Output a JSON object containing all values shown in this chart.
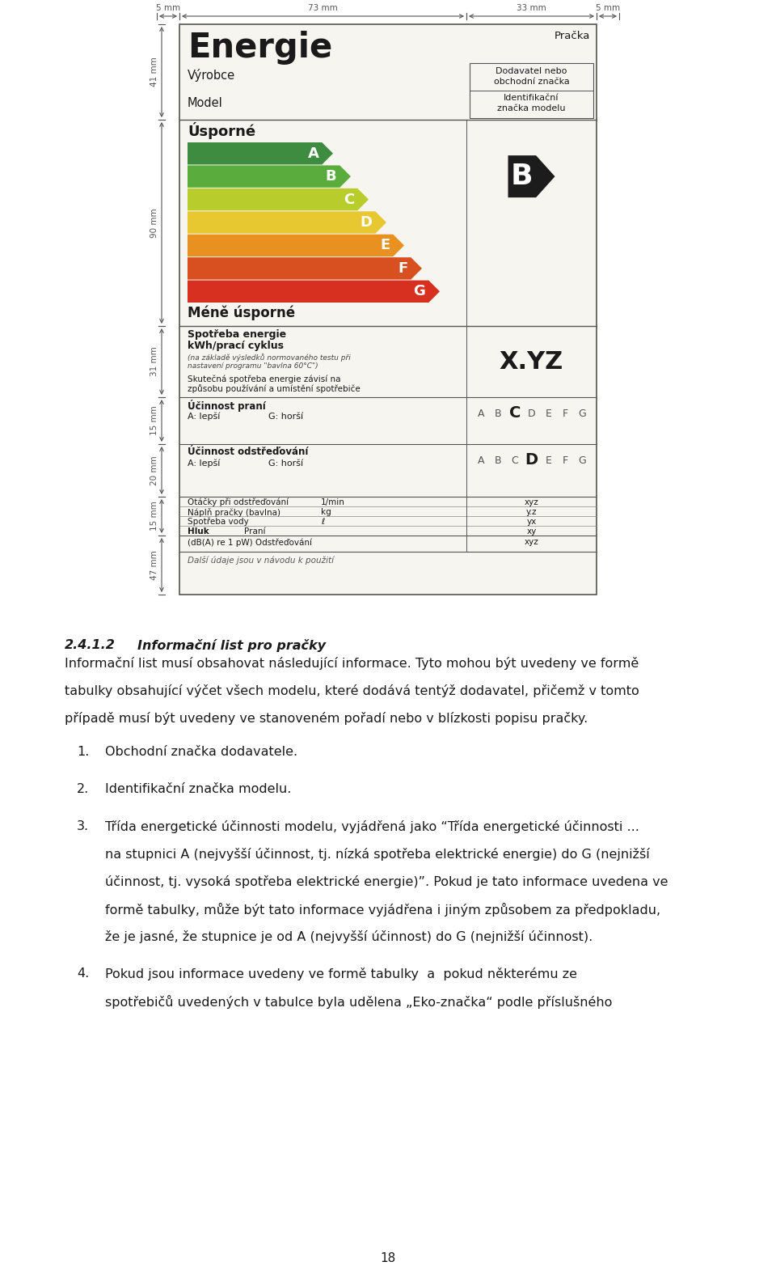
{
  "bg_color": "#ffffff",
  "label_bg": "#f7f5f0",
  "page_title_section": {
    "heading": "2.4.1.2",
    "heading_italic": "Informační list pro pračky",
    "paragraph1": "Informační list musí obsahovat následující informace. Tyto mohou být uvedeny ve formě tabulky obsahující výčet všech modelu, které dodává tentýž dodavatel, přičemž v tomto případě musí být uvedeny ve stanoveném pořadí nebo v blízkosti popisu pračky.",
    "item1": "Obchodní značka dodavatele.",
    "item2": "Identifikační značka modelu.",
    "item3a": "Třída energetické účinnosti modelu, vyjádřená jako “Třída energetické účinnosti ...",
    "item3b": "na stupnici A (nejvyšší účinnost, tj. nízká spotřeba elektrické energie) do G (nejnižší",
    "item3c": "účinnost, tj. vysoká spotřeba elektrické energie)”. Pokud je tato informace uvedena ve",
    "item3d": "formě tabulky, může být tato informace vyjádřena i jiným způsobem za předpokladu,",
    "item3e": "že je jasné, že stupnice je od A (nejvyšší účinnost) do G (nejnižší účinnost).",
    "item4a": "Pokud jsou informace uvedeny ve formě tabulky  a  pokud některému ze",
    "item4b": "spotřebičů uvedených v tabulce byla udělena „Eko-značka“ podle příslušného",
    "page_number": "18"
  },
  "energy_label": {
    "title": "Energie",
    "product_type": "Pračka",
    "manufacturer_label": "Výrobce",
    "model_label": "Model",
    "supplier_note_line1": "Dodavatel nebo",
    "supplier_note_line2": "obchodní značka",
    "id_note_line1": "Identifikační",
    "id_note_line2": "značka modelu",
    "efficient_label": "Úsporné",
    "inefficient_label": "Méně úsporné",
    "energy_classes": [
      "A",
      "B",
      "C",
      "D",
      "E",
      "F",
      "G"
    ],
    "energy_colors": [
      "#3d8c40",
      "#5aad3c",
      "#b8cc2c",
      "#e8c830",
      "#e89020",
      "#d85020",
      "#d83020"
    ],
    "selected_class": "B",
    "energy_value": "X.YZ",
    "energy_label_line1": "Spotřeba energie",
    "energy_label_line2": "kWh/prací cyklus",
    "energy_note_line1": "(na základě výsledků normovaného testu při",
    "energy_note_line2": "nastavení programu \"bavlna 60°C\")",
    "energy_note2_line1": "Skutečná spotřeba energie závisí na",
    "energy_note2_line2": "způsobu používání a umístění spotřebiče",
    "washing_eff_label": "Účinnost praní",
    "washing_eff_subscale": "A: lepší",
    "washing_eff_subscale2": "G: horší",
    "washing_eff_value": "C",
    "spin_eff_label": "Účinnost odstřeďování",
    "spin_eff_subscale": "A: lepší",
    "spin_eff_subscale2": "G: horší",
    "spin_eff_value": "D",
    "spin_speed_label": "Otáčky při odstřeďování",
    "spin_speed_unit": "1/min",
    "spin_speed_value": "xyz",
    "load_label": "Náplň pračky (bavlna)",
    "load_unit": "kg",
    "load_value": "y.z",
    "water_label": "Spotřeba vody",
    "water_unit": "ℓ",
    "water_value": "yx",
    "noise_label_wash": "Praní",
    "noise_label_main": "Hluk",
    "noise_value1": "xy",
    "noise_label3": "(dB(A) re 1 pW) Odstřeďování",
    "noise_value2": "xyz",
    "footer_note": "Další údaje jsou v návodu k použití"
  }
}
